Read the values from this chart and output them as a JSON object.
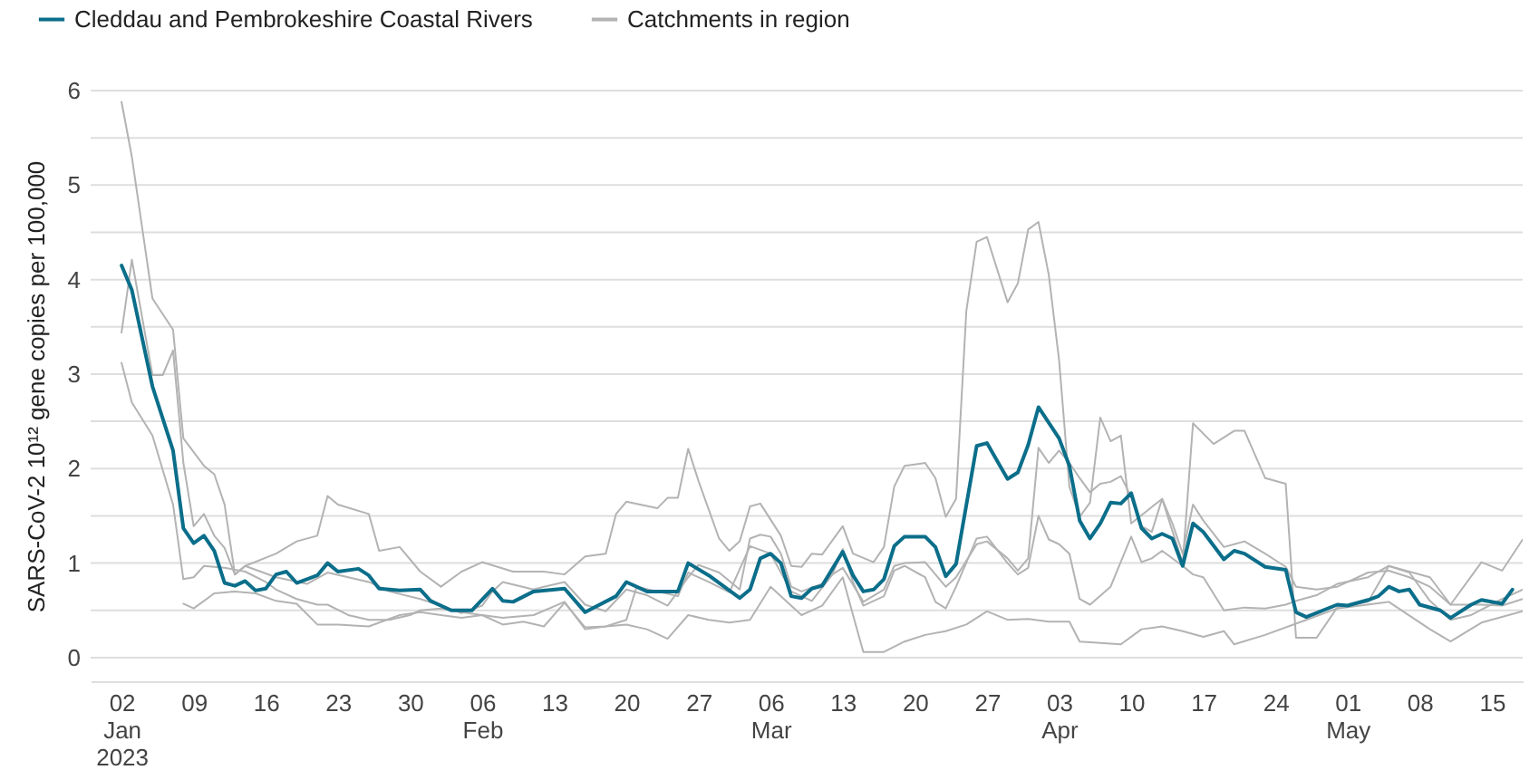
{
  "chart_data": {
    "type": "line",
    "ylabel": "SARS-CoV-2 10¹² gene copies per 100,000",
    "legend": "top",
    "grid": "y",
    "line_style": "solid",
    "xlim": [
      "2022-12-30",
      "2023-05-18"
    ],
    "xticks": [
      {
        "value": "2023-01-02",
        "label": "02\nJan\n2023"
      },
      {
        "value": "2023-01-09",
        "label": "09"
      },
      {
        "value": "2023-01-16",
        "label": "16"
      },
      {
        "value": "2023-01-23",
        "label": "23"
      },
      {
        "value": "2023-01-30",
        "label": "30"
      },
      {
        "value": "2023-02-06",
        "label": "06\nFeb"
      },
      {
        "value": "2023-02-13",
        "label": "13"
      },
      {
        "value": "2023-02-20",
        "label": "20"
      },
      {
        "value": "2023-02-27",
        "label": "27"
      },
      {
        "value": "2023-03-06",
        "label": "06\nMar"
      },
      {
        "value": "2023-03-13",
        "label": "13"
      },
      {
        "value": "2023-03-20",
        "label": "20"
      },
      {
        "value": "2023-03-27",
        "label": "27"
      },
      {
        "value": "2023-04-03",
        "label": "03\nApr"
      },
      {
        "value": "2023-04-10",
        "label": "10"
      },
      {
        "value": "2023-04-17",
        "label": "17"
      },
      {
        "value": "2023-04-24",
        "label": "24"
      },
      {
        "value": "2023-05-01",
        "label": "01\nMay"
      },
      {
        "value": "2023-05-08",
        "label": "08"
      },
      {
        "value": "2023-05-15",
        "label": "15"
      }
    ],
    "ylim": [
      -0.25,
      6
    ],
    "yticks": [
      0,
      {
        "value": 0.5,
        "label": null
      },
      1,
      {
        "value": 1.5,
        "label": null
      },
      2,
      {
        "value": 2.5,
        "label": null
      },
      3,
      {
        "value": 3.5,
        "label": null
      },
      4,
      {
        "value": 4.5,
        "label": null
      },
      5,
      {
        "value": 5.5,
        "label": null
      },
      6
    ],
    "series": [
      {
        "name": "Cleddau and Pembrokeshire Coastal Rivers",
        "color": "#0b6e8a",
        "x": [
          "2023-01-02",
          "2023-01-03",
          "2023-01-05",
          "2023-01-07",
          "2023-01-08",
          "2023-01-09",
          "2023-01-10",
          "2023-01-11",
          "2023-01-12",
          "2023-01-13",
          "2023-01-14",
          "2023-01-15",
          "2023-01-16",
          "2023-01-17",
          "2023-01-18",
          "2023-01-19",
          "2023-01-21",
          "2023-01-22",
          "2023-01-23",
          "2023-01-25",
          "2023-01-26",
          "2023-01-27",
          "2023-01-29",
          "2023-01-31",
          "2023-02-01",
          "2023-02-03",
          "2023-02-05",
          "2023-02-07",
          "2023-02-08",
          "2023-02-09",
          "2023-02-11",
          "2023-02-14",
          "2023-02-16",
          "2023-02-19",
          "2023-02-20",
          "2023-02-22",
          "2023-02-25",
          "2023-02-26",
          "2023-02-28",
          "2023-03-03",
          "2023-03-04",
          "2023-03-05",
          "2023-03-06",
          "2023-03-07",
          "2023-03-08",
          "2023-03-09",
          "2023-03-10",
          "2023-03-11",
          "2023-03-13",
          "2023-03-14",
          "2023-03-15",
          "2023-03-16",
          "2023-03-17",
          "2023-03-18",
          "2023-03-19",
          "2023-03-21",
          "2023-03-22",
          "2023-03-23",
          "2023-03-24",
          "2023-03-26",
          "2023-03-27",
          "2023-03-29",
          "2023-03-30",
          "2023-03-31",
          "2023-04-01",
          "2023-04-03",
          "2023-04-04",
          "2023-04-05",
          "2023-04-06",
          "2023-04-07",
          "2023-04-08",
          "2023-04-09",
          "2023-04-10",
          "2023-04-11",
          "2023-04-12",
          "2023-04-13",
          "2023-04-14",
          "2023-04-15",
          "2023-04-16",
          "2023-04-17",
          "2023-04-19",
          "2023-04-20",
          "2023-04-21",
          "2023-04-23",
          "2023-04-25",
          "2023-04-26",
          "2023-04-27",
          "2023-04-30",
          "2023-05-01",
          "2023-05-03",
          "2023-05-04",
          "2023-05-05",
          "2023-05-06",
          "2023-05-07",
          "2023-05-08",
          "2023-05-10",
          "2023-05-11",
          "2023-05-13",
          "2023-05-14",
          "2023-05-16",
          "2023-05-17"
        ],
        "values": [
          4.15,
          3.89,
          2.87,
          2.19,
          1.37,
          1.21,
          1.29,
          1.13,
          0.79,
          0.76,
          0.81,
          0.71,
          0.73,
          0.88,
          0.91,
          0.79,
          0.87,
          1.0,
          0.91,
          0.94,
          0.87,
          0.73,
          0.71,
          0.72,
          0.6,
          0.5,
          0.5,
          0.73,
          0.6,
          0.59,
          0.7,
          0.73,
          0.48,
          0.65,
          0.8,
          0.7,
          0.7,
          1.0,
          0.87,
          0.63,
          0.72,
          1.05,
          1.1,
          1.0,
          0.65,
          0.63,
          0.73,
          0.76,
          1.12,
          0.87,
          0.7,
          0.72,
          0.83,
          1.18,
          1.28,
          1.28,
          1.17,
          0.86,
          0.99,
          2.24,
          2.27,
          1.89,
          1.96,
          2.25,
          2.65,
          2.32,
          2.03,
          1.45,
          1.26,
          1.42,
          1.64,
          1.63,
          1.74,
          1.37,
          1.26,
          1.31,
          1.26,
          0.97,
          1.42,
          1.33,
          1.04,
          1.13,
          1.1,
          0.96,
          0.93,
          0.48,
          0.43,
          0.56,
          0.55,
          0.61,
          0.65,
          0.75,
          0.7,
          0.72,
          0.56,
          0.5,
          0.42,
          0.56,
          0.61,
          0.57,
          0.72
        ]
      },
      {
        "name": "Catchments in region",
        "color": "#b3b3b3",
        "x": [
          "2023-01-02",
          "2023-01-03",
          "2023-01-05",
          "2023-01-07",
          "2023-01-08",
          "2023-01-10",
          "2023-01-11",
          "2023-01-12",
          "2023-01-13",
          "2023-01-14",
          "2023-01-17",
          "2023-01-19",
          "2023-01-21",
          "2023-01-22",
          "2023-01-23",
          "2023-01-26",
          "2023-01-27",
          "2023-01-29",
          "2023-01-31",
          "2023-02-02",
          "2023-02-04",
          "2023-02-06",
          "2023-02-09",
          "2023-02-12",
          "2023-02-14",
          "2023-02-16",
          "2023-02-18",
          "2023-02-19",
          "2023-02-20",
          "2023-02-23",
          "2023-02-24",
          "2023-02-25",
          "2023-02-26",
          "2023-02-27",
          "2023-03-01",
          "2023-03-02",
          "2023-03-03",
          "2023-03-04",
          "2023-03-05",
          "2023-03-07",
          "2023-03-08",
          "2023-03-09",
          "2023-03-10",
          "2023-03-11",
          "2023-03-13",
          "2023-03-14",
          "2023-03-16",
          "2023-03-17",
          "2023-03-18",
          "2023-03-19",
          "2023-03-21",
          "2023-03-22",
          "2023-03-23",
          "2023-03-24",
          "2023-03-25",
          "2023-03-26",
          "2023-03-27",
          "2023-03-29",
          "2023-03-30",
          "2023-03-31",
          "2023-04-01",
          "2023-04-02",
          "2023-04-03",
          "2023-04-04",
          "2023-04-05",
          "2023-04-06",
          "2023-04-07",
          "2023-04-08",
          "2023-04-09",
          "2023-04-10",
          "2023-04-13",
          "2023-04-15",
          "2023-04-16",
          "2023-04-18",
          "2023-04-20",
          "2023-04-21",
          "2023-04-23",
          "2023-04-25",
          "2023-04-26",
          "2023-04-28",
          "2023-04-30",
          "2023-05-03",
          "2023-05-05",
          "2023-05-09",
          "2023-05-11",
          "2023-05-14",
          "2023-05-16",
          "2023-05-18"
        ],
        "values": [
          5.88,
          5.3,
          3.8,
          3.47,
          2.32,
          2.03,
          1.94,
          1.62,
          0.88,
          0.97,
          1.1,
          1.23,
          1.29,
          1.71,
          1.62,
          1.52,
          1.13,
          1.17,
          0.91,
          0.75,
          0.91,
          1.01,
          0.91,
          0.91,
          0.88,
          1.07,
          1.1,
          1.52,
          1.65,
          1.58,
          1.69,
          1.69,
          2.21,
          1.87,
          1.26,
          1.13,
          1.23,
          1.6,
          1.63,
          1.29,
          0.97,
          0.96,
          1.1,
          1.09,
          1.39,
          1.1,
          1.01,
          1.17,
          1.81,
          2.03,
          2.06,
          1.9,
          1.49,
          1.68,
          3.67,
          4.4,
          4.45,
          3.76,
          3.96,
          4.53,
          4.61,
          4.05,
          3.15,
          1.81,
          1.49,
          1.64,
          2.54,
          2.29,
          2.35,
          1.42,
          1.68,
          1.0,
          2.48,
          2.26,
          2.4,
          2.4,
          1.9,
          1.84,
          0.21,
          0.21,
          0.53,
          0.59,
          0.97,
          0.85,
          0.56,
          1.01,
          0.92,
          1.25
        ]
      },
      {
        "color": "#b3b3b3",
        "x": [
          "2023-01-02",
          "2023-01-03",
          "2023-01-05",
          "2023-01-06",
          "2023-01-07",
          "2023-01-08",
          "2023-01-09",
          "2023-01-10",
          "2023-01-11",
          "2023-01-12",
          "2023-01-13",
          "2023-01-14",
          "2023-01-17",
          "2023-01-20",
          "2023-01-22",
          "2023-01-24",
          "2023-01-26",
          "2023-01-28",
          "2023-01-31",
          "2023-02-02",
          "2023-02-04",
          "2023-02-06",
          "2023-02-07",
          "2023-02-08",
          "2023-02-11",
          "2023-02-12",
          "2023-02-14",
          "2023-02-16",
          "2023-02-18",
          "2023-02-20",
          "2023-02-22",
          "2023-02-24",
          "2023-02-26",
          "2023-02-27",
          "2023-03-01",
          "2023-03-03",
          "2023-03-04",
          "2023-03-05",
          "2023-03-06",
          "2023-03-07",
          "2023-03-08",
          "2023-03-09",
          "2023-03-11",
          "2023-03-12",
          "2023-03-13",
          "2023-03-15",
          "2023-03-17",
          "2023-03-18",
          "2023-03-19",
          "2023-03-21",
          "2023-03-23",
          "2023-03-24",
          "2023-03-26",
          "2023-03-27",
          "2023-03-29",
          "2023-03-30",
          "2023-03-31",
          "2023-04-01",
          "2023-04-02",
          "2023-04-03",
          "2023-04-04",
          "2023-04-05",
          "2023-04-06",
          "2023-04-07",
          "2023-04-08",
          "2023-04-09",
          "2023-04-10",
          "2023-04-11",
          "2023-04-12",
          "2023-04-13",
          "2023-04-14",
          "2023-04-15",
          "2023-04-16",
          "2023-04-17",
          "2023-04-19",
          "2023-04-20",
          "2023-04-21",
          "2023-04-23",
          "2023-04-25",
          "2023-04-26",
          "2023-04-28",
          "2023-04-30",
          "2023-05-03",
          "2023-05-05",
          "2023-05-07",
          "2023-05-09",
          "2023-05-11",
          "2023-05-14",
          "2023-05-16",
          "2023-05-18"
        ],
        "values": [
          3.44,
          4.21,
          2.99,
          2.99,
          3.25,
          2.06,
          1.39,
          1.52,
          1.29,
          1.16,
          0.88,
          0.97,
          0.85,
          0.78,
          0.9,
          0.85,
          0.8,
          0.7,
          0.62,
          0.55,
          0.47,
          0.55,
          0.7,
          0.8,
          0.72,
          0.75,
          0.8,
          0.56,
          0.49,
          0.72,
          0.66,
          0.55,
          0.85,
          0.98,
          0.9,
          0.72,
          1.26,
          1.3,
          1.28,
          1.1,
          0.75,
          0.7,
          0.78,
          0.88,
          0.95,
          0.59,
          0.72,
          0.97,
          1.0,
          1.01,
          0.75,
          0.85,
          1.2,
          1.23,
          1.05,
          0.92,
          1.05,
          2.22,
          2.06,
          2.19,
          2.06,
          1.9,
          1.75,
          1.84,
          1.86,
          1.92,
          1.7,
          1.39,
          1.33,
          1.68,
          1.42,
          1.1,
          1.62,
          1.45,
          1.17,
          1.2,
          1.23,
          1.1,
          0.96,
          0.75,
          0.72,
          0.75,
          0.9,
          0.92,
          0.85,
          0.75,
          0.56,
          0.56,
          0.55,
          0.62
        ]
      },
      {
        "color": "#b3b3b3",
        "x": [
          "2023-01-02",
          "2023-01-03",
          "2023-01-05",
          "2023-01-07",
          "2023-01-08",
          "2023-01-09",
          "2023-01-10",
          "2023-01-12",
          "2023-01-14",
          "2023-01-16",
          "2023-01-17",
          "2023-01-19",
          "2023-01-21",
          "2023-01-22",
          "2023-01-24",
          "2023-01-26",
          "2023-01-28",
          "2023-01-30",
          "2023-01-31",
          "2023-02-02",
          "2023-02-04",
          "2023-02-06",
          "2023-02-08",
          "2023-02-11",
          "2023-02-14",
          "2023-02-16",
          "2023-02-18",
          "2023-02-20",
          "2023-02-21",
          "2023-02-23",
          "2023-02-25",
          "2023-02-26",
          "2023-02-28",
          "2023-03-02",
          "2023-03-04",
          "2023-03-06",
          "2023-03-08",
          "2023-03-10",
          "2023-03-12",
          "2023-03-13",
          "2023-03-14",
          "2023-03-15",
          "2023-03-17",
          "2023-03-18",
          "2023-03-19",
          "2023-03-21",
          "2023-03-22",
          "2023-03-23",
          "2023-03-24",
          "2023-03-26",
          "2023-03-27",
          "2023-03-29",
          "2023-03-30",
          "2023-03-31",
          "2023-04-01",
          "2023-04-02",
          "2023-04-03",
          "2023-04-04",
          "2023-04-05",
          "2023-04-06",
          "2023-04-08",
          "2023-04-10",
          "2023-04-11",
          "2023-04-12",
          "2023-04-13",
          "2023-04-15",
          "2023-04-16",
          "2023-04-17",
          "2023-04-19",
          "2023-04-21",
          "2023-04-23",
          "2023-04-25",
          "2023-04-26",
          "2023-04-28",
          "2023-04-30",
          "2023-05-03",
          "2023-05-05",
          "2023-05-07",
          "2023-05-09",
          "2023-05-11",
          "2023-05-13",
          "2023-05-16",
          "2023-05-18"
        ],
        "values": [
          3.12,
          2.7,
          2.35,
          1.62,
          0.83,
          0.85,
          0.97,
          0.95,
          0.91,
          0.8,
          0.72,
          0.62,
          0.56,
          0.56,
          0.45,
          0.4,
          0.4,
          0.45,
          0.5,
          0.52,
          0.48,
          0.45,
          0.42,
          0.45,
          0.59,
          0.3,
          0.33,
          0.4,
          0.75,
          0.7,
          0.65,
          0.9,
          0.8,
          0.69,
          1.18,
          1.1,
          0.7,
          0.6,
          0.88,
          1.15,
          0.8,
          0.55,
          0.65,
          0.92,
          0.97,
          0.85,
          0.59,
          0.52,
          0.75,
          1.26,
          1.28,
          1.0,
          0.88,
          0.95,
          1.5,
          1.25,
          1.2,
          1.1,
          0.62,
          0.56,
          0.75,
          1.28,
          1.01,
          1.05,
          1.13,
          0.97,
          0.88,
          0.85,
          0.5,
          0.53,
          0.52,
          0.56,
          0.6,
          0.66,
          0.78,
          0.85,
          0.97,
          0.9,
          0.6,
          0.4,
          0.45,
          0.62,
          0.72
        ]
      },
      {
        "color": "#b3b3b3",
        "x": [
          "2023-01-08",
          "2023-01-09",
          "2023-01-11",
          "2023-01-13",
          "2023-01-15",
          "2023-01-17",
          "2023-01-19",
          "2023-01-21",
          "2023-01-23",
          "2023-01-26",
          "2023-01-29",
          "2023-01-31",
          "2023-02-02",
          "2023-02-04",
          "2023-02-06",
          "2023-02-08",
          "2023-02-10",
          "2023-02-12",
          "2023-02-14",
          "2023-02-16",
          "2023-02-18",
          "2023-02-20",
          "2023-02-22",
          "2023-02-24",
          "2023-02-26",
          "2023-02-28",
          "2023-03-02",
          "2023-03-04",
          "2023-03-06",
          "2023-03-09",
          "2023-03-11",
          "2023-03-13",
          "2023-03-14",
          "2023-03-15",
          "2023-03-17",
          "2023-03-19",
          "2023-03-21",
          "2023-03-23",
          "2023-03-25",
          "2023-03-27",
          "2023-03-29",
          "2023-03-31",
          "2023-04-02",
          "2023-04-04",
          "2023-04-05",
          "2023-04-09",
          "2023-04-11",
          "2023-04-13",
          "2023-04-15",
          "2023-04-17",
          "2023-04-19",
          "2023-04-20",
          "2023-04-23",
          "2023-04-27",
          "2023-04-30",
          "2023-05-05",
          "2023-05-09",
          "2023-05-11",
          "2023-05-14",
          "2023-05-18"
        ],
        "values": [
          0.57,
          0.52,
          0.68,
          0.7,
          0.68,
          0.6,
          0.57,
          0.35,
          0.35,
          0.33,
          0.45,
          0.48,
          0.45,
          0.42,
          0.45,
          0.35,
          0.38,
          0.33,
          0.58,
          0.32,
          0.33,
          0.35,
          0.3,
          0.2,
          0.45,
          0.4,
          0.37,
          0.4,
          0.75,
          0.45,
          0.55,
          0.85,
          0.45,
          0.06,
          0.06,
          0.17,
          0.24,
          0.28,
          0.35,
          0.49,
          0.4,
          0.41,
          0.38,
          0.38,
          0.17,
          0.14,
          0.3,
          0.33,
          0.28,
          0.22,
          0.28,
          0.14,
          0.24,
          0.4,
          0.52,
          0.59,
          0.3,
          0.17,
          0.37,
          0.49
        ]
      }
    ]
  }
}
